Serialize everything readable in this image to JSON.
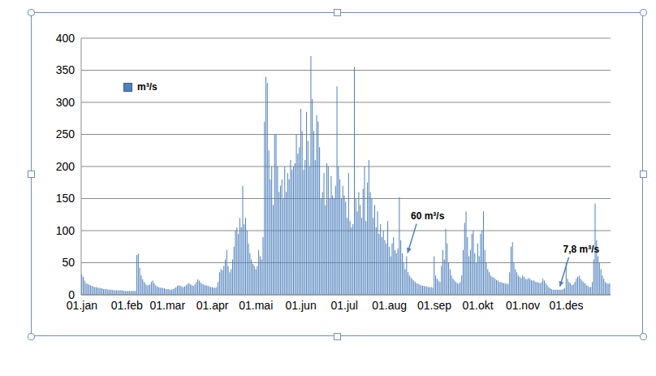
{
  "chart_data": {
    "type": "bar",
    "categories": [
      "01.jan",
      null,
      null,
      null,
      null,
      null,
      null,
      null,
      null,
      null,
      null,
      null,
      null,
      null,
      null,
      null,
      null,
      null,
      null,
      null,
      null,
      null,
      null,
      null,
      null,
      null,
      null,
      null,
      null,
      null,
      null,
      "01.feb",
      null,
      null,
      null,
      null,
      null,
      null,
      null,
      null,
      null,
      null,
      null,
      null,
      null,
      null,
      null,
      null,
      null,
      null,
      null,
      null,
      null,
      null,
      null,
      null,
      null,
      null,
      null,
      "01.mar",
      null,
      null,
      null,
      null,
      null,
      null,
      null,
      null,
      null,
      null,
      null,
      null,
      null,
      null,
      null,
      null,
      null,
      null,
      null,
      null,
      null,
      null,
      null,
      null,
      null,
      null,
      null,
      null,
      null,
      null,
      "01.apr",
      null,
      null,
      null,
      null,
      null,
      null,
      null,
      null,
      null,
      null,
      null,
      null,
      null,
      null,
      null,
      null,
      null,
      null,
      null,
      null,
      null,
      null,
      null,
      null,
      null,
      null,
      null,
      null,
      null,
      "01.mai",
      null,
      null,
      null,
      null,
      null,
      null,
      null,
      null,
      null,
      null,
      null,
      null,
      null,
      null,
      null,
      null,
      null,
      null,
      null,
      null,
      null,
      null,
      null,
      null,
      null,
      null,
      null,
      null,
      null,
      null,
      "01.jun",
      null,
      null,
      null,
      null,
      null,
      null,
      null,
      null,
      null,
      null,
      null,
      null,
      null,
      null,
      null,
      null,
      null,
      null,
      null,
      null,
      null,
      null,
      null,
      null,
      null,
      null,
      null,
      null,
      null,
      "01.jul",
      null,
      null,
      null,
      null,
      null,
      null,
      null,
      null,
      null,
      null,
      null,
      null,
      null,
      null,
      null,
      null,
      null,
      null,
      null,
      null,
      null,
      null,
      null,
      null,
      null,
      null,
      null,
      null,
      null,
      null,
      "01.aug",
      null,
      null,
      null,
      null,
      null,
      null,
      null,
      null,
      null,
      null,
      null,
      null,
      null,
      null,
      null,
      null,
      null,
      null,
      null,
      null,
      null,
      null,
      null,
      null,
      null,
      null,
      null,
      null,
      null,
      null,
      "01.sep",
      null,
      null,
      null,
      null,
      null,
      null,
      null,
      null,
      null,
      null,
      null,
      null,
      null,
      null,
      null,
      null,
      null,
      null,
      null,
      null,
      null,
      null,
      null,
      null,
      null,
      null,
      null,
      null,
      null,
      "01.okt",
      null,
      null,
      null,
      null,
      null,
      null,
      null,
      null,
      null,
      null,
      null,
      null,
      null,
      null,
      null,
      null,
      null,
      null,
      null,
      null,
      null,
      null,
      null,
      null,
      null,
      null,
      null,
      null,
      null,
      null,
      "01.nov",
      null,
      null,
      null,
      null,
      null,
      null,
      null,
      null,
      null,
      null,
      null,
      null,
      null,
      null,
      null,
      null,
      null,
      null,
      null,
      null,
      null,
      null,
      null,
      null,
      null,
      null,
      null,
      null,
      null,
      "01.des",
      null,
      null,
      null,
      null,
      null,
      null,
      null,
      null,
      null,
      null,
      null,
      null,
      null,
      null,
      null,
      null,
      null,
      null,
      null,
      null,
      null,
      null,
      null,
      null,
      null,
      null,
      null,
      null,
      null,
      null
    ],
    "series": [
      {
        "name": "m³/s",
        "color": "#4f81bd",
        "values": [
          32,
          28,
          22,
          18,
          17,
          16,
          15,
          14,
          13,
          12,
          12,
          11,
          11,
          10,
          10,
          9,
          9,
          9,
          8,
          8,
          8,
          8,
          7,
          7,
          7,
          7,
          7,
          7,
          7,
          6,
          6,
          6,
          6,
          6,
          6,
          6,
          6,
          6,
          62,
          64,
          42,
          30,
          24,
          20,
          17,
          15,
          15,
          16,
          20,
          22,
          18,
          15,
          13,
          12,
          11,
          11,
          10,
          10,
          9,
          9,
          9,
          8,
          8,
          9,
          10,
          12,
          14,
          15,
          14,
          13,
          12,
          13,
          15,
          17,
          18,
          16,
          15,
          14,
          16,
          20,
          24,
          22,
          19,
          17,
          16,
          15,
          15,
          14,
          13,
          12,
          12,
          11,
          11,
          12,
          20,
          35,
          40,
          38,
          45,
          55,
          70,
          45,
          35,
          40,
          55,
          75,
          100,
          105,
          95,
          120,
          105,
          170,
          110,
          120,
          100,
          80,
          65,
          55,
          48,
          45,
          40,
          45,
          70,
          60,
          55,
          90,
          270,
          340,
          330,
          225,
          180,
          200,
          140,
          250,
          250,
          200,
          160,
          170,
          180,
          150,
          200,
          160,
          190,
          180,
          210,
          195,
          200,
          205,
          250,
          220,
          230,
          290,
          255,
          195,
          210,
          285,
          240,
          200,
          372,
          305,
          255,
          210,
          280,
          270,
          230,
          150,
          160,
          190,
          140,
          205,
          200,
          150,
          185,
          155,
          150,
          170,
          325,
          200,
          180,
          150,
          170,
          155,
          145,
          120,
          190,
          115,
          105,
          110,
          355,
          150,
          130,
          160,
          140,
          120,
          165,
          200,
          115,
          175,
          210,
          160,
          150,
          120,
          140,
          105,
          130,
          95,
          110,
          90,
          100,
          85,
          80,
          115,
          75,
          60,
          80,
          90,
          70,
          65,
          72,
          152,
          85,
          65,
          50,
          40,
          60,
          35,
          30,
          27,
          24,
          22,
          20,
          18,
          17,
          16,
          15,
          14,
          14,
          13,
          13,
          12,
          12,
          12,
          11,
          60,
          30,
          25,
          22,
          20,
          45,
          70,
          55,
          103,
          80,
          50,
          40,
          30,
          25,
          22,
          20,
          18,
          17,
          20,
          30,
          70,
          112,
          130,
          90,
          60,
          70,
          95,
          100,
          65,
          50,
          80,
          60,
          95,
          100,
          130,
          70,
          50,
          40,
          35,
          30,
          28,
          27,
          25,
          23,
          22,
          20,
          20,
          19,
          18,
          18,
          17,
          17,
          35,
          75,
          82,
          50,
          40,
          35,
          30,
          28,
          26,
          30,
          28,
          25,
          24,
          26,
          25,
          23,
          22,
          22,
          20,
          20,
          19,
          18,
          20,
          25,
          22,
          18,
          15,
          12,
          10,
          9,
          8,
          8,
          8,
          8,
          7.8,
          8,
          8,
          9,
          10,
          50,
          25,
          20,
          18,
          15,
          16,
          20,
          25,
          28,
          30,
          25,
          22,
          20,
          18,
          15,
          14,
          12,
          12,
          20,
          55,
          142,
          85,
          60,
          50,
          40,
          30,
          25,
          20,
          18,
          17,
          18
        ]
      }
    ],
    "ylim": [
      0,
      400
    ],
    "yticks": [
      0,
      50,
      100,
      150,
      200,
      250,
      300,
      350,
      400
    ],
    "grid": true,
    "legend": "top-left",
    "annotations": [
      {
        "text": "60 m³/s",
        "index": 224,
        "y": 60
      },
      {
        "text": "7,8 m³/s",
        "index": 329,
        "y": 7.8
      }
    ]
  }
}
